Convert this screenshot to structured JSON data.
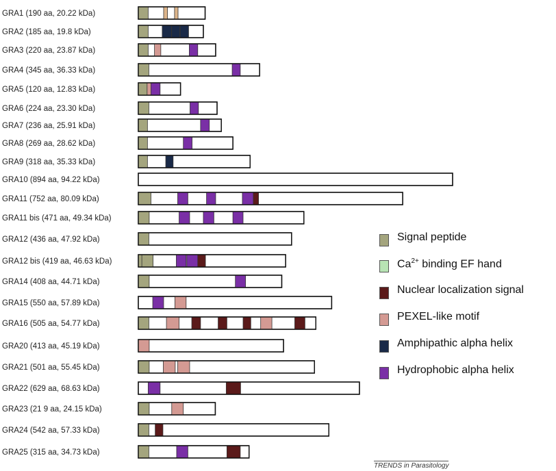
{
  "domain_colors": {
    "signal_peptide": "#a4a57e",
    "ca_ef_hand": "#b8e4b4",
    "nls": "#5b1a1a",
    "pexel": "#d49a93",
    "amphipathic": "#1a2a48",
    "hydrophobic": "#7a2fa6",
    "tan_stripe": "#dcb48a"
  },
  "legend": [
    {
      "key": "signal_peptide",
      "label": "Signal peptide"
    },
    {
      "key": "ca_ef_hand",
      "label_main": "Ca",
      "label_sup": "2+",
      "label_rest": " binding EF hand"
    },
    {
      "key": "nls",
      "label": "Nuclear localization signal"
    },
    {
      "key": "pexel",
      "label": "PEXEL-like motif"
    },
    {
      "key": "amphipathic",
      "label": "Amphipathic alpha helix"
    },
    {
      "key": "hydrophobic",
      "label": "Hydrophobic alpha helix"
    }
  ],
  "credit": "TRENDS in Parasitology",
  "proteins": [
    {
      "label": "GRA1 (190 aa, 20.22 kDa)",
      "length": 190,
      "domains": [
        {
          "t": "signal_peptide",
          "s": 1,
          "e": 28
        },
        {
          "t": "tan_stripe",
          "s": 73,
          "e": 83
        },
        {
          "t": "tan_stripe",
          "s": 104,
          "e": 113
        }
      ]
    },
    {
      "label": "GRA2 (185 aa, 19.8 kDa)",
      "length": 185,
      "domains": [
        {
          "t": "signal_peptide",
          "s": 1,
          "e": 28
        },
        {
          "t": "amphipathic",
          "s": 69,
          "e": 94
        },
        {
          "t": "amphipathic",
          "s": 96,
          "e": 118
        },
        {
          "t": "amphipathic",
          "s": 120,
          "e": 143
        }
      ]
    },
    {
      "label": "GRA3 (220 aa, 23.87 kDa)",
      "length": 220,
      "domains": [
        {
          "t": "signal_peptide",
          "s": 1,
          "e": 28
        },
        {
          "t": "pexel",
          "s": 47,
          "e": 64
        },
        {
          "t": "hydrophobic",
          "s": 146,
          "e": 169
        }
      ]
    },
    {
      "label": "GRA4 (345 aa, 36.33 kDa)",
      "length": 345,
      "domains": [
        {
          "t": "signal_peptide",
          "s": 1,
          "e": 30
        },
        {
          "t": "hydrophobic",
          "s": 268,
          "e": 290
        }
      ]
    },
    {
      "label": "GRA5 (120 aa, 12.83 kDa)",
      "length": 120,
      "domains": [
        {
          "t": "signal_peptide",
          "s": 1,
          "e": 26
        },
        {
          "t": "pexel",
          "s": 26,
          "e": 37
        },
        {
          "t": "hydrophobic",
          "s": 37,
          "e": 62
        }
      ]
    },
    {
      "label": "GRA6 (224 aa, 23.30 kDa)",
      "length": 224,
      "domains": [
        {
          "t": "signal_peptide",
          "s": 1,
          "e": 30
        },
        {
          "t": "hydrophobic",
          "s": 148,
          "e": 171
        }
      ]
    },
    {
      "label": "GRA7 (236 aa, 25.91 kDa)",
      "length": 236,
      "domains": [
        {
          "t": "signal_peptide",
          "s": 1,
          "e": 26
        },
        {
          "t": "hydrophobic",
          "s": 178,
          "e": 202
        }
      ]
    },
    {
      "label": "GRA8 (269 aa, 28.62 kDa)",
      "length": 269,
      "domains": [
        {
          "t": "signal_peptide",
          "s": 1,
          "e": 26
        },
        {
          "t": "hydrophobic",
          "s": 129,
          "e": 153
        }
      ]
    },
    {
      "label": "GRA9 (318 aa, 35.33 kDa)",
      "length": 318,
      "domains": [
        {
          "t": "signal_peptide",
          "s": 1,
          "e": 26
        },
        {
          "t": "amphipathic",
          "s": 79,
          "e": 99
        }
      ]
    },
    {
      "label": "GRA10 (894 aa, 94.22 kDa)",
      "length": 894,
      "domains": []
    },
    {
      "label": "GRA11 (752 aa, 80.09 kDa)",
      "length": 752,
      "domains": [
        {
          "t": "signal_peptide",
          "s": 1,
          "e": 36
        },
        {
          "t": "hydrophobic",
          "s": 113,
          "e": 141
        },
        {
          "t": "hydrophobic",
          "s": 195,
          "e": 220
        },
        {
          "t": "hydrophobic",
          "s": 297,
          "e": 328
        },
        {
          "t": "nls",
          "s": 328,
          "e": 342
        }
      ]
    },
    {
      "label": "GRA11 bis (471 aa, 49.34 kDa)",
      "length": 471,
      "domains": [
        {
          "t": "signal_peptide",
          "s": 1,
          "e": 31
        },
        {
          "t": "hydrophobic",
          "s": 117,
          "e": 146
        },
        {
          "t": "hydrophobic",
          "s": 186,
          "e": 215
        },
        {
          "t": "hydrophobic",
          "s": 270,
          "e": 298
        }
      ]
    },
    {
      "label": "GRA12 (436 aa, 47.92 kDa)",
      "length": 436,
      "domains": [
        {
          "t": "signal_peptide",
          "s": 1,
          "e": 30
        }
      ]
    },
    {
      "label": "GRA12 bis (419 aa, 46.63 kDa)",
      "length": 419,
      "domains": [
        {
          "t": "signal_peptide",
          "s": 1,
          "e": 11
        },
        {
          "t": "signal_peptide",
          "s": 11,
          "e": 42
        },
        {
          "t": "hydrophobic",
          "s": 109,
          "e": 136
        },
        {
          "t": "hydrophobic",
          "s": 139,
          "e": 170
        },
        {
          "t": "nls",
          "s": 170,
          "e": 191
        }
      ]
    },
    {
      "label": "GRA14 (408 aa, 44.71 kDa)",
      "length": 408,
      "domains": [
        {
          "t": "signal_peptide",
          "s": 1,
          "e": 31
        },
        {
          "t": "hydrophobic",
          "s": 277,
          "e": 305
        }
      ]
    },
    {
      "label": "GRA15 (550 aa, 57.89 kDa)",
      "length": 550,
      "domains": [
        {
          "t": "hydrophobic",
          "s": 42,
          "e": 72
        },
        {
          "t": "pexel",
          "s": 105,
          "e": 136
        }
      ]
    },
    {
      "label": "GRA16 (505 aa, 54.77 kDa)",
      "length": 505,
      "domains": [
        {
          "t": "signal_peptide",
          "s": 1,
          "e": 30
        },
        {
          "t": "pexel",
          "s": 81,
          "e": 116
        },
        {
          "t": "nls",
          "s": 153,
          "e": 177
        },
        {
          "t": "nls",
          "s": 228,
          "e": 252
        },
        {
          "t": "nls",
          "s": 299,
          "e": 320
        },
        {
          "t": "pexel",
          "s": 349,
          "e": 380
        },
        {
          "t": "nls",
          "s": 446,
          "e": 474
        }
      ]
    },
    {
      "label": "GRA20 (413 aa, 45.19 kDa)",
      "length": 413,
      "domains": [
        {
          "t": "pexel",
          "s": 1,
          "e": 31
        }
      ]
    },
    {
      "label": "GRA21 (501 aa, 55.45 kDa)",
      "length": 501,
      "domains": [
        {
          "t": "signal_peptide",
          "s": 1,
          "e": 31
        },
        {
          "t": "pexel",
          "s": 72,
          "e": 105
        },
        {
          "t": "pexel",
          "s": 113,
          "e": 146
        }
      ]
    },
    {
      "label": "GRA22 (629 aa, 68.63 kDa)",
      "length": 629,
      "domains": [
        {
          "t": "hydrophobic",
          "s": 29,
          "e": 62
        },
        {
          "t": "nls",
          "s": 251,
          "e": 291
        }
      ]
    },
    {
      "label": "GRA23 (21 9 aa, 24.15 kDa)",
      "length": 219,
      "domains": [
        {
          "t": "signal_peptide",
          "s": 1,
          "e": 31
        },
        {
          "t": "pexel",
          "s": 96,
          "e": 128
        }
      ]
    },
    {
      "label": "GRA24 (542 aa, 57.33 kDa)",
      "length": 542,
      "domains": [
        {
          "t": "signal_peptide",
          "s": 1,
          "e": 30
        },
        {
          "t": "nls",
          "s": 49,
          "e": 70
        }
      ]
    },
    {
      "label": "GRA25 (315 aa, 34.73 kDa)",
      "length": 315,
      "domains": [
        {
          "t": "signal_peptide",
          "s": 1,
          "e": 30
        },
        {
          "t": "hydrophobic",
          "s": 110,
          "e": 141
        },
        {
          "t": "nls",
          "s": 253,
          "e": 290
        }
      ]
    }
  ]
}
